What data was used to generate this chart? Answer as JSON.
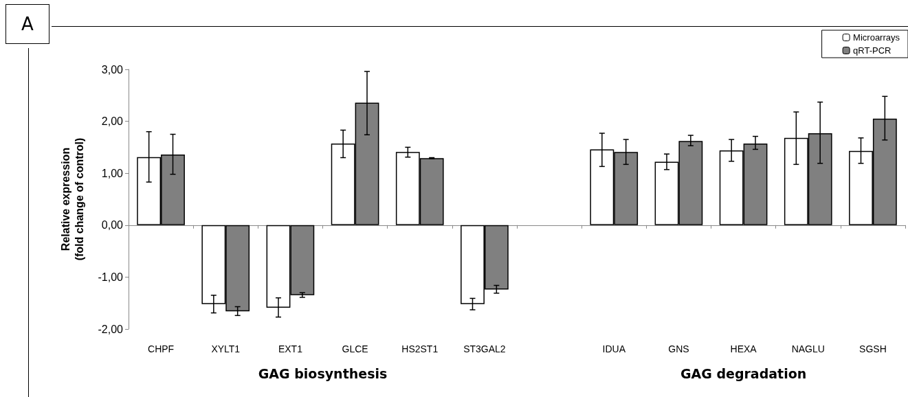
{
  "chart_data": {
    "type": "bar",
    "categories": [
      "CHPF",
      "XYLT1",
      "EXT1",
      "GLCE",
      "HS2ST1",
      "ST3GAL2",
      null,
      "IDUA",
      "GNS",
      "HEXA",
      "NAGLU",
      "SGSH"
    ],
    "series": [
      {
        "name": "Microarrays",
        "color": "#ffffff",
        "values": [
          1.31,
          -1.52,
          -1.59,
          1.57,
          1.41,
          -1.52,
          null,
          1.46,
          1.22,
          1.44,
          1.68,
          1.43
        ],
        "errors": [
          [
            0.83,
            1.8
          ],
          [
            -1.69,
            -1.35
          ],
          [
            -1.77,
            -1.4
          ],
          [
            1.3,
            1.83
          ],
          [
            1.31,
            1.5
          ],
          [
            -1.63,
            -1.41
          ],
          null,
          [
            1.13,
            1.77
          ],
          [
            1.07,
            1.37
          ],
          [
            1.23,
            1.65
          ],
          [
            1.17,
            2.18
          ],
          [
            1.19,
            1.68
          ]
        ]
      },
      {
        "name": "qRT-PCR",
        "color": "#808080",
        "values": [
          1.36,
          -1.66,
          -1.35,
          2.36,
          1.29,
          -1.24,
          null,
          1.41,
          1.62,
          1.57,
          1.77,
          2.05
        ],
        "errors": [
          [
            0.98,
            1.75
          ],
          [
            -1.74,
            -1.57
          ],
          [
            -1.39,
            -1.3
          ],
          [
            1.74,
            2.96
          ],
          [
            1.28,
            1.3
          ],
          [
            -1.31,
            -1.16
          ],
          null,
          [
            1.17,
            1.65
          ],
          [
            1.53,
            1.73
          ],
          [
            1.46,
            1.71
          ],
          [
            1.19,
            2.37
          ],
          [
            1.64,
            2.48
          ]
        ]
      }
    ],
    "ylabel": "Relative expression\n(fold change of control)",
    "ylim": [
      -2,
      3
    ],
    "yticks": [
      {
        "value": -2,
        "label": "-2,00"
      },
      {
        "value": -1,
        "label": "-1,00"
      },
      {
        "value": 0,
        "label": "0,00"
      },
      {
        "value": 1,
        "label": "1,00"
      },
      {
        "value": 2,
        "label": "2,00"
      },
      {
        "value": 3,
        "label": "3,00"
      }
    ],
    "annotations": [
      "A",
      "GAG biosynthesis",
      "GAG degradation"
    ],
    "legend": "top right"
  }
}
